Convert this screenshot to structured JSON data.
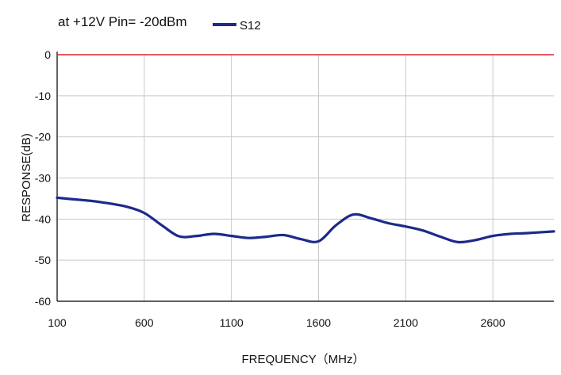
{
  "chart_data": {
    "type": "line",
    "title": "",
    "caption": "at +12V Pin=  -20dBm",
    "xlabel": "FREQUENCY（MHz）",
    "ylabel": "RESPONSE(dB)",
    "xlim": [
      100,
      2950
    ],
    "ylim": [
      -60,
      0
    ],
    "x_ticks": [
      "100",
      "600",
      "1100",
      "1600",
      "2100",
      "2600"
    ],
    "y_ticks": [
      "0",
      "-10",
      "-20",
      "-30",
      "-40",
      "-50",
      "-60"
    ],
    "grid": true,
    "legend": "top-left",
    "reference_line": {
      "value": 0,
      "color": "#d62728"
    },
    "series": [
      {
        "name": "S12",
        "color": "#1c2a8c",
        "x": [
          100,
          200,
          300,
          400,
          500,
          600,
          700,
          800,
          900,
          1000,
          1100,
          1200,
          1300,
          1400,
          1500,
          1600,
          1700,
          1800,
          1900,
          2000,
          2100,
          2200,
          2300,
          2400,
          2500,
          2600,
          2700,
          2800,
          2950
        ],
        "y": [
          -34.8,
          -35.2,
          -35.6,
          -36.2,
          -37.0,
          -38.5,
          -41.5,
          -44.2,
          -44.1,
          -43.6,
          -44.1,
          -44.6,
          -44.3,
          -43.9,
          -44.9,
          -45.4,
          -41.5,
          -38.9,
          -39.8,
          -41.0,
          -41.8,
          -42.8,
          -44.3,
          -45.6,
          -45.1,
          -44.1,
          -43.6,
          -43.4,
          -43.0
        ]
      }
    ]
  }
}
